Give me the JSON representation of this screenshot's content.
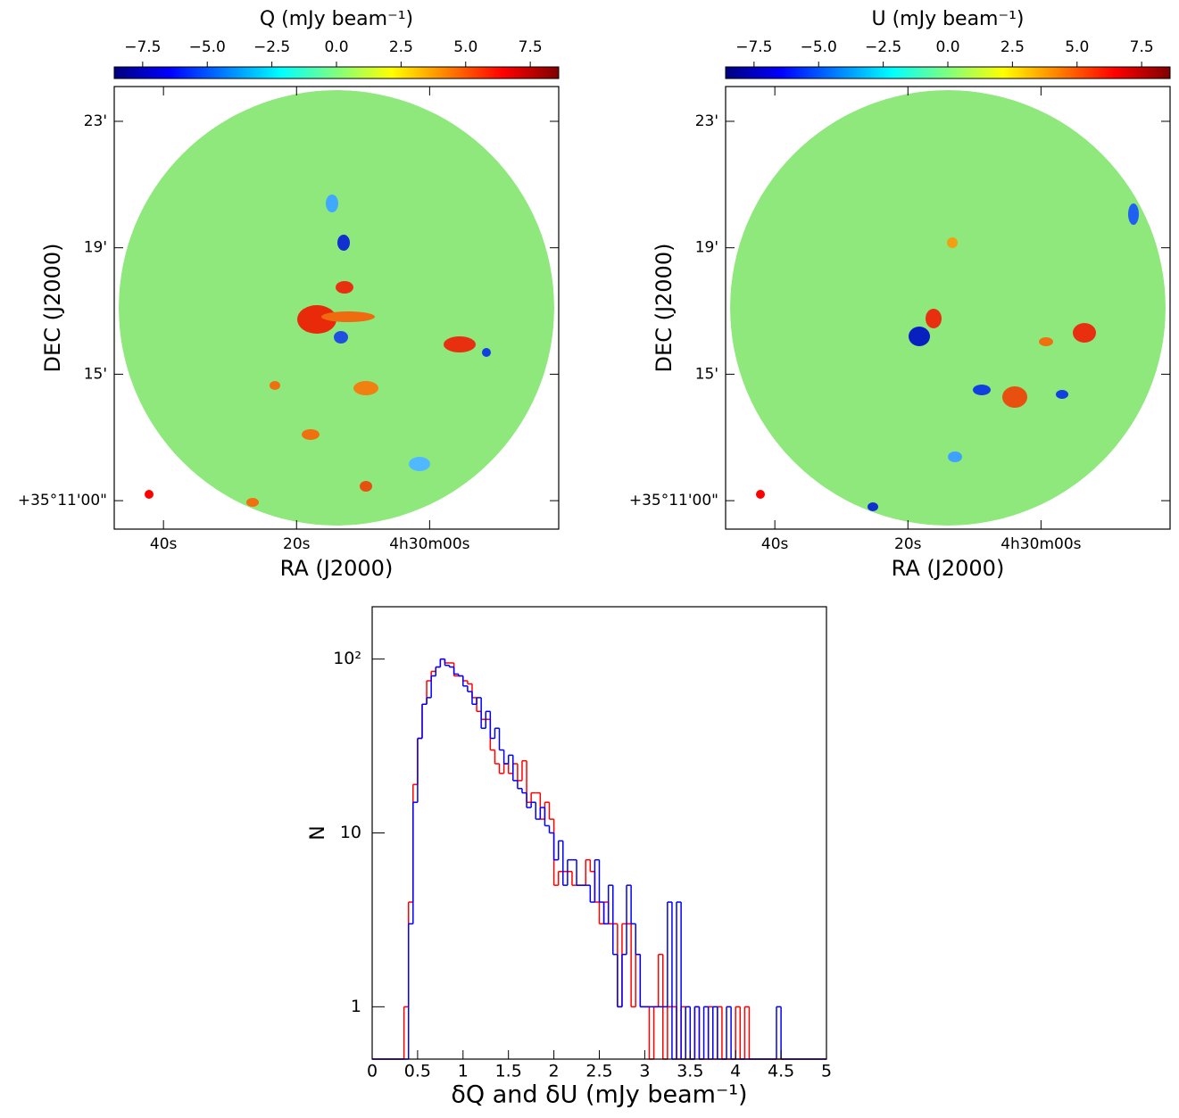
{
  "chart_data": [
    {
      "type": "image",
      "title": "Q (mJy beam⁻¹)",
      "x_label": "RA (J2000)",
      "y_label": "DEC (J2000)",
      "clim": [
        -8.6,
        8.6
      ],
      "cticks": [
        {
          "value": -7.5,
          "label": "−7.5"
        },
        {
          "value": -5,
          "label": "−5.0"
        },
        {
          "value": -2.5,
          "label": "−2.5"
        },
        {
          "value": 0,
          "label": "0.0"
        },
        {
          "value": 2.5,
          "label": "2.5"
        },
        {
          "value": 5,
          "label": "5.0"
        },
        {
          "value": 7.5,
          "label": "7.5"
        }
      ],
      "xlim": [
        47.4,
        -19.4
      ],
      "xticks": [
        {
          "value": 40,
          "label": "40s"
        },
        {
          "value": 20,
          "label": "20s"
        },
        {
          "value": 0,
          "label": "4h30m00s"
        }
      ],
      "ylim": [
        10.1,
        24.1
      ],
      "yticks": [
        {
          "value": 23,
          "label": "23'"
        },
        {
          "value": 19,
          "label": "19'"
        },
        {
          "value": 15,
          "label": "15'"
        },
        {
          "value": 11,
          "label": "+35°11'00\""
        }
      ]
    },
    {
      "type": "image",
      "title": "U (mJy beam⁻¹)",
      "x_label": "RA (J2000)",
      "y_label": "DEC (J2000)",
      "clim": [
        -8.6,
        8.6
      ],
      "cticks": [
        {
          "value": -7.5,
          "label": "−7.5"
        },
        {
          "value": -5,
          "label": "−5.0"
        },
        {
          "value": -2.5,
          "label": "−2.5"
        },
        {
          "value": 0,
          "label": "0.0"
        },
        {
          "value": 2.5,
          "label": "2.5"
        },
        {
          "value": 5,
          "label": "5.0"
        },
        {
          "value": 7.5,
          "label": "7.5"
        }
      ],
      "xlim": [
        47.4,
        -19.4
      ],
      "xticks": [
        {
          "value": 40,
          "label": "40s"
        },
        {
          "value": 20,
          "label": "20s"
        },
        {
          "value": 0,
          "label": "4h30m00s"
        }
      ],
      "ylim": [
        10.1,
        24.1
      ],
      "yticks": [
        {
          "value": 23,
          "label": "23'"
        },
        {
          "value": 19,
          "label": "19'"
        },
        {
          "value": 15,
          "label": "15'"
        },
        {
          "value": 11,
          "label": "+35°11'00\""
        }
      ]
    },
    {
      "type": "histogram",
      "x_label": "δQ and δU (mJy beam⁻¹)",
      "y_label": "N",
      "log_y": true,
      "xlim": [
        0,
        5
      ],
      "xticks": [
        0,
        0.5,
        1,
        1.5,
        2,
        2.5,
        3,
        3.5,
        4,
        4.5,
        5
      ],
      "ylim": [
        0.5,
        200
      ],
      "yticks": [
        1,
        10,
        {
          "value": 100,
          "label": "10²"
        }
      ],
      "bins": [
        0,
        0.05,
        0.1,
        0.15,
        0.2,
        0.25,
        0.3,
        0.35,
        0.4,
        0.45,
        0.5,
        0.55,
        0.6,
        0.65,
        0.7,
        0.75,
        0.8,
        0.85,
        0.9,
        0.95,
        1,
        1.05,
        1.1,
        1.15,
        1.2,
        1.25,
        1.3,
        1.35,
        1.4,
        1.45,
        1.5,
        1.55,
        1.6,
        1.65,
        1.7,
        1.75,
        1.8,
        1.85,
        1.9,
        1.95,
        2,
        2.05,
        2.1,
        2.15,
        2.2,
        2.25,
        2.3,
        2.35,
        2.4,
        2.45,
        2.5,
        2.55,
        2.6,
        2.65,
        2.7,
        2.75,
        2.8,
        2.85,
        2.9,
        2.95,
        3,
        3.05,
        3.1,
        3.15,
        3.2,
        3.25,
        3.3,
        3.35,
        3.4,
        3.45,
        3.5,
        3.55,
        3.6,
        3.65,
        3.7,
        3.75,
        3.8,
        3.85,
        3.9,
        3.95,
        4,
        4.05,
        4.1,
        4.15,
        4.2,
        4.25,
        4.3,
        4.35,
        4.4,
        4.45,
        4.5,
        4.55,
        4.6,
        4.65,
        4.7,
        4.75,
        4.8,
        4.85,
        4.9,
        4.95,
        5
      ],
      "series": [
        {
          "color": "#ff0000",
          "values": [
            0,
            0,
            0,
            0,
            0,
            0,
            0,
            1,
            4,
            19,
            35,
            55,
            75,
            85,
            90,
            100,
            95,
            95,
            80,
            80,
            75,
            72,
            60,
            50,
            45,
            45,
            30,
            25,
            22,
            25,
            22,
            25,
            20,
            26,
            15,
            17,
            17,
            12,
            15,
            12,
            5,
            6,
            6,
            6,
            5,
            5,
            5,
            7,
            6,
            4,
            3,
            4,
            3,
            3,
            1,
            3,
            3,
            1,
            2,
            1,
            1,
            0,
            1,
            2,
            0,
            1,
            1,
            0,
            1,
            0,
            0,
            1,
            0,
            0,
            1,
            0,
            1,
            0,
            0,
            0,
            1,
            0,
            1,
            0,
            0,
            0,
            0,
            0,
            0,
            0,
            0,
            0,
            0,
            0,
            0,
            0,
            0,
            0,
            0,
            0
          ]
        },
        {
          "color": "#0000ff",
          "values": [
            0,
            0,
            0,
            0,
            0,
            0,
            0,
            0,
            3,
            15,
            35,
            55,
            60,
            80,
            90,
            100,
            92,
            90,
            82,
            80,
            70,
            65,
            55,
            60,
            40,
            50,
            35,
            40,
            30,
            25,
            28,
            20,
            18,
            17,
            14,
            15,
            12,
            14,
            11,
            10,
            7,
            9,
            5,
            7,
            7,
            5,
            5,
            5,
            4,
            7,
            4,
            3,
            5,
            2,
            1,
            2,
            5,
            3,
            2,
            1,
            1,
            1,
            1,
            1,
            1,
            4,
            0,
            4,
            0,
            1,
            0,
            1,
            0,
            1,
            0,
            1,
            0,
            0,
            1,
            0,
            0,
            0,
            0,
            0,
            0,
            0,
            0,
            0,
            0,
            1,
            0,
            0,
            0,
            0,
            0,
            0,
            0,
            0,
            0,
            0
          ]
        }
      ]
    }
  ]
}
